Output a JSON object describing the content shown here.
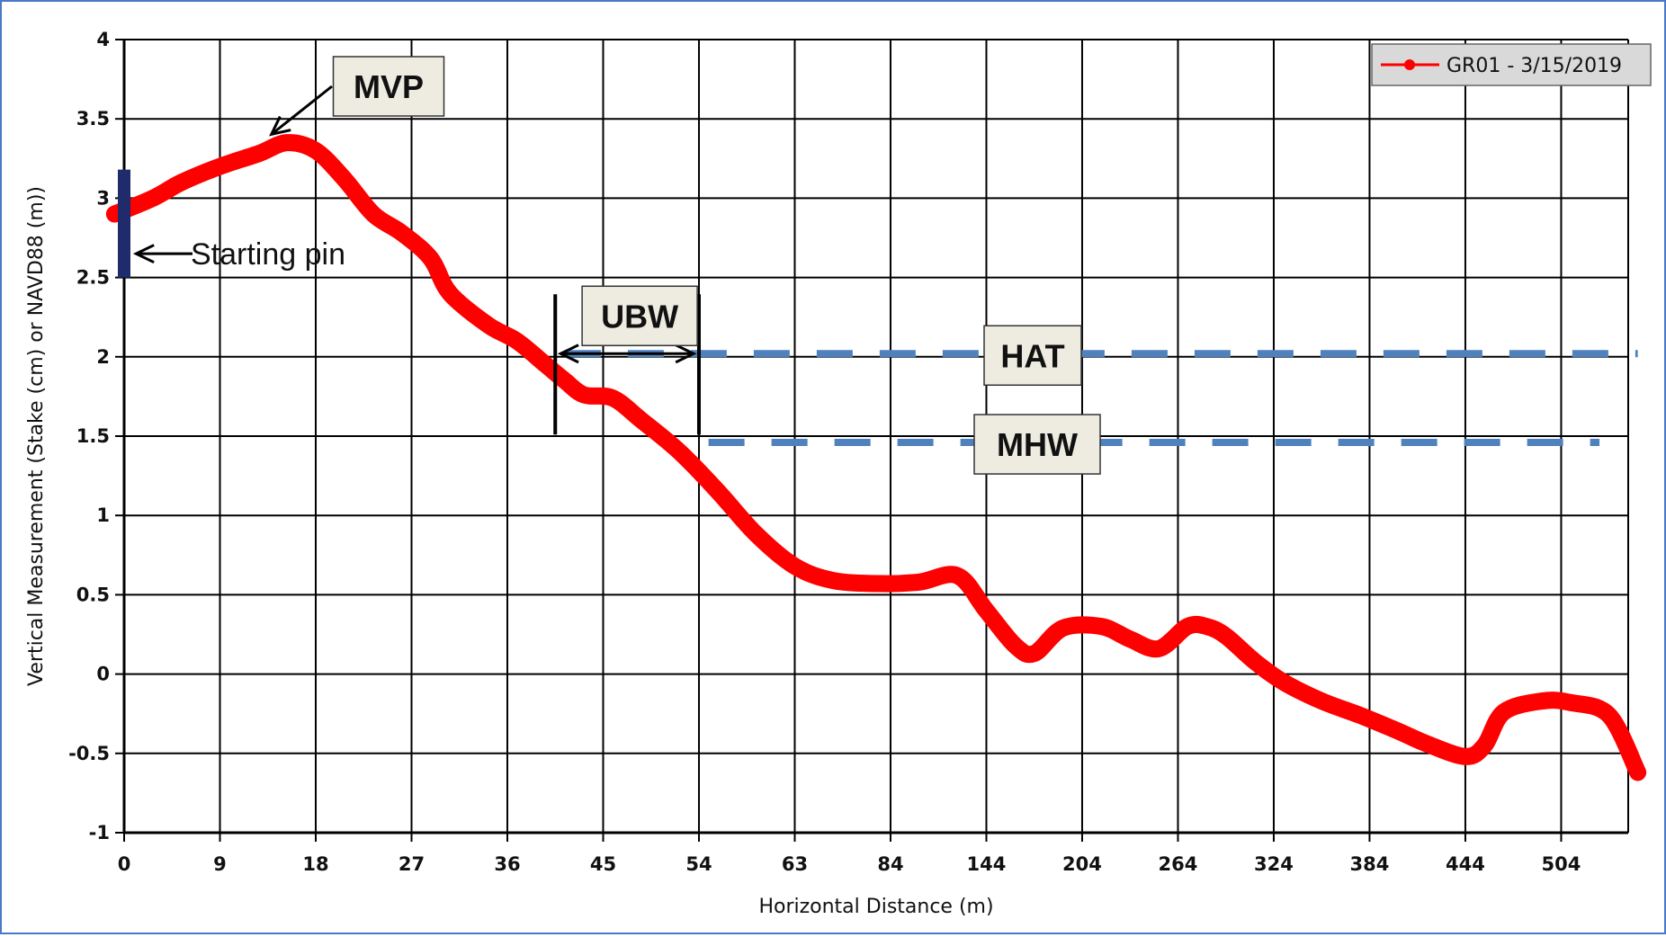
{
  "chart_data": {
    "type": "line",
    "title": "",
    "xlabel": "Horizontal Distance (m)",
    "ylabel": "Vertical Measurement (Stake (cm) or NAVD88 (m))",
    "x_tick_labels": [
      "0",
      "9",
      "18",
      "27",
      "36",
      "45",
      "54",
      "63",
      "84",
      "144",
      "204",
      "264",
      "324",
      "384",
      "444",
      "504"
    ],
    "y_ticks": [
      -1,
      -0.5,
      0,
      0.5,
      1,
      1.5,
      2,
      2.5,
      3,
      3.5,
      4
    ],
    "y_tick_labels": [
      "-1",
      "-0.5",
      "0",
      "0.5",
      "1",
      "1.5",
      "2",
      "2.5",
      "3",
      "3.5",
      "4"
    ],
    "ylim": [
      -1,
      4
    ],
    "grid": true,
    "legend_position": "top-right",
    "series": [
      {
        "name": "GR01 - 3/15/2019",
        "color": "#ff0000",
        "x_index": [
          -0.1,
          0.3,
          0.6,
          1.0,
          1.4,
          1.7,
          2.0,
          2.3,
          2.6,
          2.9,
          3.2,
          3.4,
          3.8,
          4.1,
          4.4,
          4.6,
          4.8,
          5.1,
          5.4,
          5.8,
          6.2,
          6.6,
          7.0,
          7.4,
          7.9,
          8.3,
          8.7,
          9.0,
          9.3,
          9.5,
          9.8,
          10.2,
          10.5,
          10.8,
          11.1,
          11.3,
          11.5,
          11.8,
          12.1,
          12.5,
          12.9,
          13.3,
          13.6,
          14.0,
          14.2,
          14.4,
          14.8,
          15.1,
          15.5,
          15.8
        ],
        "values": [
          2.9,
          3.0,
          3.1,
          3.2,
          3.28,
          3.35,
          3.3,
          3.12,
          2.9,
          2.78,
          2.62,
          2.4,
          2.2,
          2.1,
          1.95,
          1.85,
          1.76,
          1.74,
          1.6,
          1.4,
          1.15,
          0.88,
          0.68,
          0.59,
          0.57,
          0.58,
          0.62,
          0.4,
          0.18,
          0.13,
          0.29,
          0.3,
          0.22,
          0.16,
          0.3,
          0.3,
          0.24,
          0.08,
          -0.05,
          -0.17,
          -0.26,
          -0.36,
          -0.44,
          -0.52,
          -0.45,
          -0.24,
          -0.17,
          -0.18,
          -0.26,
          -0.62
        ]
      }
    ],
    "reference_lines": [
      {
        "label": "HAT",
        "value": 2.02,
        "x_start_index": 4.6,
        "x_end_index": 15.8,
        "color": "#4f81bd"
      },
      {
        "label": "MHW",
        "value": 1.46,
        "x_start_index": 6.1,
        "x_end_index": 15.4,
        "color": "#4f81bd"
      }
    ],
    "annotations": [
      {
        "label": "MVP",
        "type": "arrow",
        "x_index": 1.5,
        "value": 3.38
      },
      {
        "label": "UBW",
        "type": "bracket",
        "x_start_index": 4.5,
        "x_end_index": 6.0,
        "value": 2.02
      },
      {
        "label": "Starting pin",
        "type": "arrow",
        "x_index": 0.05,
        "value": 2.65
      }
    ],
    "starting_pin": {
      "x_index": 0,
      "value_from": 2.5,
      "value_to": 3.18,
      "color": "#1f2b6b"
    }
  }
}
